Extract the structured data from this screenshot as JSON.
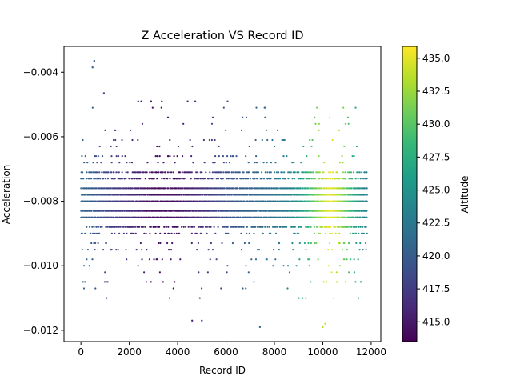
{
  "chart_data": {
    "type": "scatter",
    "title": "Z Acceleration VS Record ID",
    "xlabel": "Record ID",
    "ylabel": "Acceleration",
    "xlim": [
      -700,
      12400
    ],
    "ylim": [
      -0.01235,
      -0.0032
    ],
    "x_ticks": [
      0,
      2000,
      4000,
      6000,
      8000,
      10000,
      12000
    ],
    "x_tick_labels": [
      "0",
      "2000",
      "4000",
      "6000",
      "8000",
      "10000",
      "12000"
    ],
    "y_ticks": [
      -0.004,
      -0.006,
      -0.008,
      -0.01,
      -0.012
    ],
    "y_tick_labels": [
      "−0.004",
      "−0.006",
      "−0.008",
      "−0.010",
      "−0.012"
    ],
    "grid": false,
    "colorbar": {
      "label": "Altitude",
      "colormap": "viridis",
      "range": [
        413.5,
        435.9
      ],
      "ticks": [
        415.0,
        417.5,
        420.0,
        422.5,
        425.0,
        427.5,
        430.0,
        432.5,
        435.0
      ],
      "tick_labels": [
        "415.0",
        "417.5",
        "420.0",
        "422.5",
        "425.0",
        "427.5",
        "430.0",
        "432.5",
        "435.0"
      ]
    },
    "point_count_approx": 11800,
    "record_id_range": [
      0,
      11800
    ],
    "acceleration_levels": [
      -0.0049,
      -0.0051,
      -0.0054,
      -0.0056,
      -0.0058,
      -0.0061,
      -0.0063,
      -0.0066,
      -0.0068,
      -0.0071,
      -0.0073,
      -0.0076,
      -0.0078,
      -0.008,
      -0.0083,
      -0.0085,
      -0.0088,
      -0.009,
      -0.0093,
      -0.0095,
      -0.0098,
      -0.01,
      -0.0102,
      -0.0105,
      -0.0107,
      -0.011
    ],
    "altitude_by_record_id": {
      "x": [
        0,
        1000,
        2000,
        3000,
        4000,
        5000,
        6000,
        7000,
        8000,
        8500,
        9000,
        9500,
        10000,
        10300,
        10700,
        11000,
        11500,
        11800
      ],
      "altitude": [
        421,
        418.5,
        416.5,
        414.2,
        414.5,
        416.5,
        419,
        420.5,
        422,
        423,
        425,
        429,
        433.5,
        435.5,
        433,
        430,
        425,
        423
      ]
    },
    "outliers": [
      {
        "x": 550,
        "y": -0.00365
      },
      {
        "x": 480,
        "y": -0.00385
      },
      {
        "x": 950,
        "y": -0.00465
      },
      {
        "x": 7400,
        "y": -0.0119
      },
      {
        "x": 10000,
        "y": -0.0119
      },
      {
        "x": 10100,
        "y": -0.0118
      },
      {
        "x": 4600,
        "y": -0.0117
      },
      {
        "x": 5000,
        "y": -0.0117
      }
    ]
  }
}
